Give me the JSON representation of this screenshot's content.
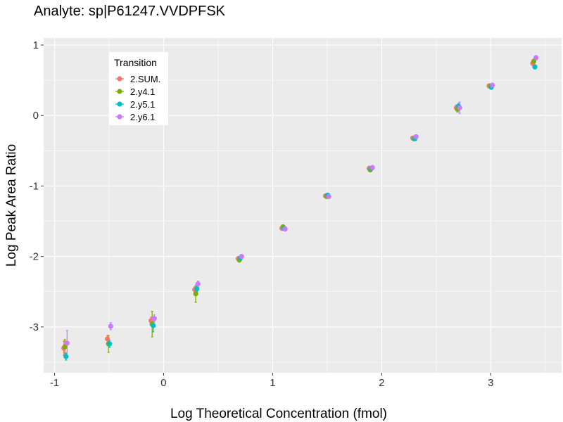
{
  "chart_data": {
    "type": "scatter",
    "title": "Analyte: sp|P61247.VVDPFSK",
    "xlabel": "Log Theoretical Concentration (fmol)",
    "ylabel": "Log Peak Area Ratio",
    "xlim": [
      -1.1,
      3.65
    ],
    "ylim": [
      -3.65,
      1.1
    ],
    "x_ticks": [
      -1,
      0,
      1,
      2,
      3
    ],
    "y_ticks": [
      -3,
      -2,
      -1,
      0,
      1
    ],
    "x_tick_labels": [
      "-1",
      "0",
      "1",
      "2",
      "3"
    ],
    "y_tick_labels": [
      "-3",
      "-2",
      "-1",
      "0",
      "1"
    ],
    "grid": true,
    "legend": {
      "title": "Transition",
      "position": "top-left",
      "entries": [
        "2.SUM.",
        "2.y4.1",
        "2.y5.1",
        "2.y6.1"
      ]
    },
    "colors": {
      "2.SUM.": "#F8766D",
      "2.y4.1": "#7CAE00",
      "2.y5.1": "#00BFC4",
      "2.y6.1": "#C77CFF"
    },
    "series": [
      {
        "name": "2.SUM.",
        "x": [
          -0.9,
          -0.5,
          -0.1,
          0.3,
          0.7,
          1.1,
          1.5,
          1.9,
          2.3,
          2.7,
          3.0,
          3.4
        ],
        "y": [
          -3.3,
          -3.17,
          -2.91,
          -2.47,
          -2.03,
          -1.6,
          -1.14,
          -0.75,
          -0.32,
          0.11,
          0.42,
          0.74
        ],
        "err": [
          0.1,
          0.05,
          0.05,
          0.04,
          0.03,
          0.03,
          0.02,
          0.03,
          0.02,
          0.04,
          0.02,
          0.03
        ]
      },
      {
        "name": "2.y4.1",
        "x": [
          -0.9,
          -0.5,
          -0.1,
          0.3,
          0.7,
          1.1,
          1.5,
          1.9,
          2.3,
          2.7,
          3.0,
          3.4
        ],
        "y": [
          -3.28,
          -3.24,
          -2.96,
          -2.53,
          -2.05,
          -1.58,
          -1.15,
          -0.77,
          -0.33,
          0.09,
          0.42,
          0.77
        ],
        "err": [
          0.1,
          0.12,
          0.18,
          0.12,
          0.03,
          0.03,
          0.02,
          0.03,
          0.02,
          0.04,
          0.02,
          0.03
        ]
      },
      {
        "name": "2.y5.1",
        "x": [
          -0.9,
          -0.5,
          -0.1,
          0.3,
          0.7,
          1.1,
          1.5,
          1.9,
          2.3,
          2.7,
          3.0,
          3.4
        ],
        "y": [
          -3.42,
          -3.24,
          -2.98,
          -2.46,
          -2.02,
          -1.6,
          -1.13,
          -0.75,
          -0.33,
          0.13,
          0.4,
          0.69
        ],
        "err": [
          0.05,
          0.05,
          0.09,
          0.04,
          0.03,
          0.03,
          0.02,
          0.03,
          0.02,
          0.04,
          0.02,
          0.03
        ]
      },
      {
        "name": "2.y6.1",
        "x": [
          -0.9,
          -0.5,
          -0.1,
          0.3,
          0.7,
          1.1,
          1.5,
          1.9,
          2.3,
          2.7,
          3.0,
          3.4
        ],
        "y": [
          -3.23,
          -2.99,
          -2.88,
          -2.39,
          -2.0,
          -1.61,
          -1.15,
          -0.74,
          -0.3,
          0.11,
          0.43,
          0.82
        ],
        "err": [
          0.18,
          0.05,
          0.05,
          0.04,
          0.03,
          0.03,
          0.02,
          0.03,
          0.02,
          0.08,
          0.02,
          0.03
        ]
      }
    ]
  }
}
